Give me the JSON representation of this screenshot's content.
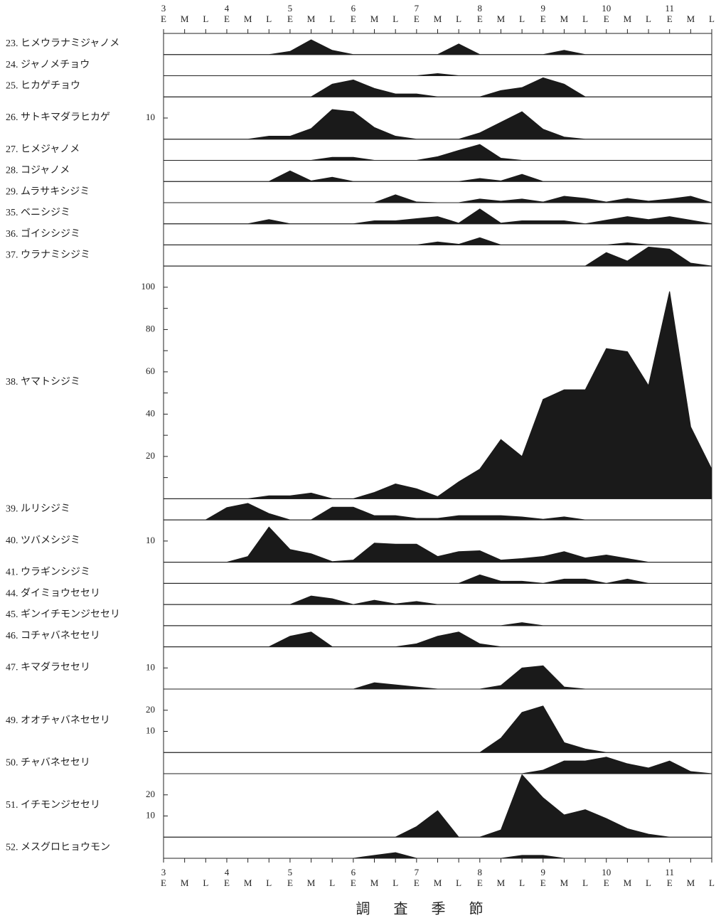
{
  "chart_data": {
    "type": "area",
    "color": "#1a1a1a",
    "xlabel": "調 査 季 節",
    "months": [
      "3",
      "4",
      "5",
      "6",
      "7",
      "8",
      "9",
      "10",
      "11"
    ],
    "categories": [
      "E",
      "M",
      "L",
      "E",
      "M",
      "L",
      "E",
      "M",
      "L",
      "E",
      "M",
      "L",
      "E",
      "M",
      "L",
      "E",
      "M",
      "L",
      "E",
      "M",
      "L",
      "E",
      "M",
      "L",
      "E",
      "M",
      "L"
    ],
    "series": [
      {
        "name": "23. ヒメウラナミジャノメ",
        "ylim": [
          0,
          10
        ],
        "values": [
          0,
          0,
          0,
          0,
          0,
          0,
          1.5,
          7,
          2,
          0,
          0,
          0,
          0,
          0,
          5,
          0,
          0,
          0,
          0,
          2,
          0,
          0,
          0,
          0,
          0,
          0,
          0
        ]
      },
      {
        "name": "24. ジャノメチョウ",
        "ylim": [
          0,
          10
        ],
        "values": [
          0,
          0,
          0,
          0,
          0,
          0,
          0,
          0,
          0,
          0,
          0,
          0,
          0,
          1,
          0,
          0,
          0,
          0,
          0,
          0,
          0,
          0,
          0,
          0,
          0,
          0,
          0
        ]
      },
      {
        "name": "25. ヒカゲチョウ",
        "ylim": [
          0,
          10
        ],
        "values": [
          0,
          0,
          0,
          0,
          0,
          0,
          0,
          0,
          6,
          8,
          4,
          1.4,
          1.4,
          0,
          0,
          0,
          3,
          4.4,
          9,
          6,
          0,
          0,
          0,
          0,
          0,
          0,
          0
        ]
      },
      {
        "name": "26. サトキマダラヒカゲ",
        "ylim": [
          0,
          20
        ],
        "yticks": [
          10
        ],
        "values": [
          0,
          0,
          0,
          0,
          0,
          1.4,
          1.4,
          5,
          14,
          13,
          5.5,
          1.4,
          0,
          0,
          0,
          3,
          8,
          13,
          4.7,
          1,
          0,
          0,
          0,
          0,
          0,
          0,
          0
        ]
      },
      {
        "name": "27. ヒメジャノメ",
        "ylim": [
          0,
          10
        ],
        "values": [
          0,
          0,
          0,
          0,
          0,
          0,
          0,
          0,
          1.4,
          1.4,
          0,
          0,
          0,
          1.7,
          4.7,
          7.5,
          1,
          0,
          0,
          0,
          0,
          0,
          0,
          0,
          0,
          0,
          0
        ]
      },
      {
        "name": "28. コジャノメ",
        "ylim": [
          0,
          10
        ],
        "values": [
          0,
          0,
          0,
          0,
          0,
          0,
          5,
          0.3,
          2,
          0,
          0,
          0,
          0,
          0,
          0,
          1.4,
          0.3,
          3.4,
          0,
          0,
          0,
          0,
          0,
          0,
          0,
          0,
          0
        ]
      },
      {
        "name": "29. ムラサキシジミ",
        "ylim": [
          0,
          10
        ],
        "values": [
          0,
          0,
          0,
          0,
          0,
          0,
          0,
          0,
          0,
          0,
          0,
          3.7,
          0.3,
          0,
          0,
          1.7,
          0.7,
          1.7,
          0.3,
          3,
          2,
          0.3,
          2,
          0.7,
          1.7,
          3,
          0
        ]
      },
      {
        "name": "35. ベニシジミ",
        "ylim": [
          0,
          10
        ],
        "values": [
          0,
          0,
          0,
          0,
          0,
          2,
          0,
          0,
          0,
          0,
          1.4,
          1.4,
          2.4,
          3.4,
          0.3,
          7,
          0.3,
          1.4,
          1.4,
          1.4,
          0,
          1.7,
          3.4,
          2,
          3.4,
          1.7,
          0
        ]
      },
      {
        "name": "36. ゴイシシジミ",
        "ylim": [
          0,
          10
        ],
        "values": [
          0,
          0,
          0,
          0,
          0,
          0,
          0,
          0,
          0,
          0,
          0,
          0,
          0,
          1.4,
          0.3,
          3.4,
          0,
          0,
          0,
          0,
          0,
          0,
          1,
          0,
          0,
          0,
          0
        ]
      },
      {
        "name": "37. ウラナミシジミ",
        "ylim": [
          0,
          10
        ],
        "values": [
          0,
          0,
          0,
          0,
          0,
          0,
          0,
          0,
          0,
          0,
          0,
          0,
          0,
          0,
          0,
          0,
          0,
          0,
          0,
          0,
          0,
          6.4,
          2.4,
          9,
          8,
          1.4,
          0
        ]
      },
      {
        "name": "38. ヤマトシジミ",
        "ylim": [
          0,
          110
        ],
        "yticks": [
          20,
          40,
          60,
          80,
          100
        ],
        "minor_yticks": [
          10,
          30,
          50,
          70,
          90
        ],
        "values": [
          0,
          0,
          0,
          0,
          0,
          1.4,
          1.4,
          2.7,
          0,
          0,
          3,
          7,
          4.7,
          1,
          8,
          14,
          28,
          20,
          47,
          51.5,
          51.5,
          71,
          69.5,
          53.5,
          98,
          34,
          14
        ]
      },
      {
        "name": "39. ルリシジミ",
        "ylim": [
          0,
          10
        ],
        "values": [
          0,
          0,
          0,
          5.8,
          7.8,
          3,
          0,
          0,
          6,
          6,
          2,
          2,
          0.7,
          0.7,
          2,
          2,
          2,
          1.4,
          0.3,
          1.4,
          0,
          0,
          0,
          0,
          0,
          0,
          0
        ]
      },
      {
        "name": "40. ツバメシジミ",
        "ylim": [
          0,
          20
        ],
        "yticks": [
          10
        ],
        "values": [
          0,
          0,
          0,
          0,
          2.7,
          16.6,
          6,
          4,
          0.3,
          1,
          9,
          8.5,
          8.5,
          2.7,
          5,
          5.4,
          1,
          1.7,
          2.7,
          5,
          2,
          3.4,
          1.7,
          0,
          0,
          0,
          0
        ]
      },
      {
        "name": "41. ウラギンシジミ",
        "ylim": [
          0,
          10
        ],
        "values": [
          0,
          0,
          0,
          0,
          0,
          0,
          0,
          0,
          0,
          0,
          0,
          0,
          0,
          0,
          0,
          4,
          1,
          1,
          0,
          2,
          2,
          0,
          2,
          0,
          0,
          0,
          0
        ]
      },
      {
        "name": "44. ダイミョウセセリ",
        "ylim": [
          0,
          10
        ],
        "values": [
          0,
          0,
          0,
          0,
          0,
          0,
          0,
          4,
          2.7,
          0,
          2,
          0.3,
          1.4,
          0,
          0,
          0,
          0,
          0,
          0,
          0,
          0,
          0,
          0,
          0,
          0,
          0,
          0
        ]
      },
      {
        "name": "45. ギンイチモンジセセリ",
        "ylim": [
          0,
          10
        ],
        "values": [
          0,
          0,
          0,
          0,
          0,
          0,
          0,
          0,
          0,
          0,
          0,
          0,
          0,
          0,
          0,
          0,
          0,
          1.4,
          0,
          0,
          0,
          0,
          0,
          0,
          0,
          0,
          0
        ]
      },
      {
        "name": "46. コチャバネセセリ",
        "ylim": [
          0,
          10
        ],
        "values": [
          0,
          0,
          0,
          0,
          0,
          0,
          5,
          7,
          0,
          0,
          0,
          0,
          1.4,
          5,
          7,
          1.4,
          0,
          0,
          0,
          0,
          0,
          0,
          0,
          0,
          0,
          0,
          0
        ]
      },
      {
        "name": "47. キマダラセセリ",
        "ylim": [
          0,
          20
        ],
        "yticks": [
          10
        ],
        "values": [
          0,
          0,
          0,
          0,
          0,
          0,
          0,
          0,
          0,
          0,
          3,
          2,
          1,
          0,
          0,
          0,
          1.7,
          10,
          11,
          1,
          0,
          0,
          0,
          0,
          0,
          0,
          0
        ]
      },
      {
        "name": "49. オオチャバネセセリ",
        "ylim": [
          0,
          30
        ],
        "yticks": [
          10,
          20
        ],
        "values": [
          0,
          0,
          0,
          0,
          0,
          0,
          0,
          0,
          0,
          0,
          0,
          0,
          0,
          0,
          0,
          0,
          6.8,
          19,
          22,
          4.7,
          1.7,
          0,
          0,
          0,
          0,
          0,
          0
        ]
      },
      {
        "name": "50. チャバネセセリ",
        "ylim": [
          0,
          10
        ],
        "values": [
          0,
          0,
          0,
          0,
          0,
          0,
          0,
          0,
          0,
          0,
          0,
          0,
          0,
          0,
          0,
          0,
          0,
          0,
          1.7,
          6,
          6,
          7.8,
          4.7,
          2.7,
          6,
          1,
          0
        ]
      },
      {
        "name": "51. イチモンジセセリ",
        "ylim": [
          0,
          30
        ],
        "yticks": [
          10,
          20
        ],
        "values": [
          0,
          0,
          0,
          0,
          0,
          0,
          0,
          0,
          0,
          0,
          0,
          0,
          5,
          12.5,
          0,
          0,
          3.4,
          29.5,
          18.6,
          10.5,
          13,
          8.8,
          4,
          1.4,
          0,
          0,
          0
        ]
      },
      {
        "name": "52. メスグロヒョウモン",
        "ylim": [
          0,
          10
        ],
        "values": [
          0,
          0,
          0,
          0,
          0,
          0,
          0,
          0,
          0,
          0,
          1.4,
          2.7,
          0,
          0,
          0,
          0,
          0,
          1.4,
          1.4,
          0,
          0,
          0,
          0,
          0,
          0,
          0,
          0
        ]
      }
    ]
  }
}
